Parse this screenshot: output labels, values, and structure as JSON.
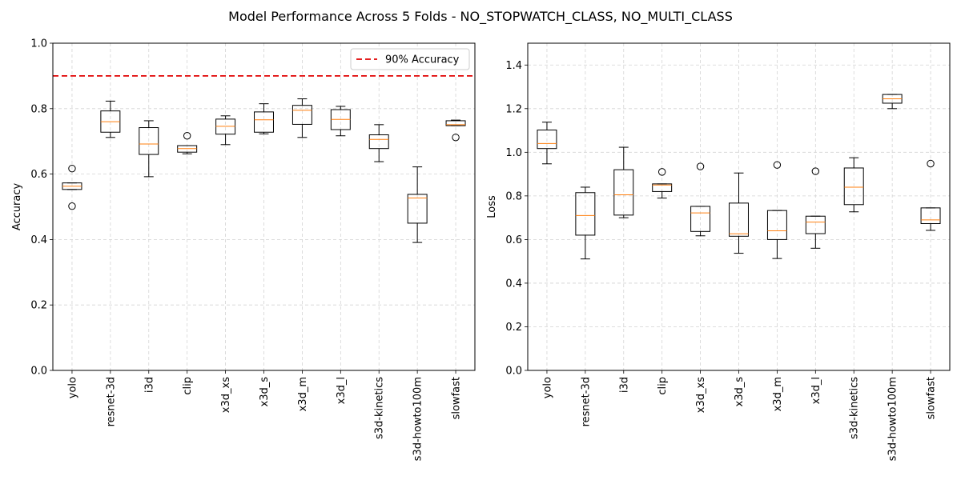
{
  "figure": {
    "title": "Model Performance Across 5 Folds - NO_STOPWATCH_CLASS, NO_MULTI_CLASS"
  },
  "chart_data": [
    {
      "type": "box",
      "ylabel": "Accuracy",
      "xlabel": "",
      "ylim": [
        0.0,
        1.0
      ],
      "yticks": [
        "0.0",
        "0.2",
        "0.4",
        "0.6",
        "0.8",
        "1.0"
      ],
      "grid": true,
      "legend": {
        "placement": "top-right",
        "entries": [
          "90% Accuracy"
        ]
      },
      "reference_line": {
        "value": 0.9,
        "label": "90% Accuracy",
        "color": "#e00000",
        "style": "dashed"
      },
      "categories": [
        "yolo",
        "resnet-3d",
        "i3d",
        "clip",
        "x3d_xs",
        "x3d_s",
        "x3d_m",
        "x3d_l",
        "s3d-kinetics",
        "s3d-howto100m",
        "slowfast"
      ],
      "boxes": [
        {
          "whislo": 0.553,
          "q1": 0.553,
          "med": 0.563,
          "q3": 0.573,
          "whishi": 0.573,
          "fliers": [
            0.617,
            0.502
          ]
        },
        {
          "whislo": 0.712,
          "q1": 0.728,
          "med": 0.76,
          "q3": 0.793,
          "whishi": 0.823,
          "fliers": []
        },
        {
          "whislo": 0.592,
          "q1": 0.66,
          "med": 0.692,
          "q3": 0.742,
          "whishi": 0.763,
          "fliers": []
        },
        {
          "whislo": 0.662,
          "q1": 0.667,
          "med": 0.678,
          "q3": 0.687,
          "whishi": 0.687,
          "fliers": [
            0.717
          ]
        },
        {
          "whislo": 0.69,
          "q1": 0.722,
          "med": 0.746,
          "q3": 0.768,
          "whishi": 0.778,
          "fliers": []
        },
        {
          "whislo": 0.723,
          "q1": 0.728,
          "med": 0.766,
          "q3": 0.79,
          "whishi": 0.815,
          "fliers": []
        },
        {
          "whislo": 0.712,
          "q1": 0.752,
          "med": 0.795,
          "q3": 0.81,
          "whishi": 0.83,
          "fliers": []
        },
        {
          "whislo": 0.717,
          "q1": 0.736,
          "med": 0.767,
          "q3": 0.797,
          "whishi": 0.807,
          "fliers": []
        },
        {
          "whislo": 0.638,
          "q1": 0.678,
          "med": 0.706,
          "q3": 0.72,
          "whishi": 0.751,
          "fliers": []
        },
        {
          "whislo": 0.391,
          "q1": 0.45,
          "med": 0.527,
          "q3": 0.538,
          "whishi": 0.622,
          "fliers": []
        },
        {
          "whislo": 0.748,
          "q1": 0.748,
          "med": 0.751,
          "q3": 0.763,
          "whishi": 0.765,
          "fliers": [
            0.712
          ]
        }
      ]
    },
    {
      "type": "box",
      "ylabel": "Loss",
      "xlabel": "",
      "ylim": [
        0.0,
        1.5
      ],
      "yticks": [
        "0.0",
        "0.2",
        "0.4",
        "0.6",
        "0.8",
        "1.0",
        "1.2",
        "1.4"
      ],
      "grid": true,
      "categories": [
        "yolo",
        "resnet-3d",
        "i3d",
        "clip",
        "x3d_xs",
        "x3d_s",
        "x3d_m",
        "x3d_l",
        "s3d-kinetics",
        "s3d-howto100m",
        "slowfast"
      ],
      "boxes": [
        {
          "whislo": 0.947,
          "q1": 1.017,
          "med": 1.04,
          "q3": 1.102,
          "whishi": 1.138,
          "fliers": []
        },
        {
          "whislo": 0.511,
          "q1": 0.62,
          "med": 0.71,
          "q3": 0.815,
          "whishi": 0.84,
          "fliers": []
        },
        {
          "whislo": 0.7,
          "q1": 0.712,
          "med": 0.805,
          "q3": 0.92,
          "whishi": 1.023,
          "fliers": []
        },
        {
          "whislo": 0.79,
          "q1": 0.82,
          "med": 0.85,
          "q3": 0.855,
          "whishi": 0.855,
          "fliers": [
            0.91
          ]
        },
        {
          "whislo": 0.617,
          "q1": 0.637,
          "med": 0.722,
          "q3": 0.752,
          "whishi": 0.752,
          "fliers": [
            0.935
          ]
        },
        {
          "whislo": 0.537,
          "q1": 0.615,
          "med": 0.626,
          "q3": 0.767,
          "whishi": 0.905,
          "fliers": []
        },
        {
          "whislo": 0.513,
          "q1": 0.6,
          "med": 0.64,
          "q3": 0.733,
          "whishi": 0.733,
          "fliers": [
            0.942
          ]
        },
        {
          "whislo": 0.56,
          "q1": 0.627,
          "med": 0.68,
          "q3": 0.707,
          "whishi": 0.707,
          "fliers": [
            0.913
          ]
        },
        {
          "whislo": 0.727,
          "q1": 0.76,
          "med": 0.84,
          "q3": 0.928,
          "whishi": 0.975,
          "fliers": []
        },
        {
          "whislo": 1.2,
          "q1": 1.225,
          "med": 1.245,
          "q3": 1.265,
          "whishi": 1.265,
          "fliers": []
        },
        {
          "whislo": 0.642,
          "q1": 0.673,
          "med": 0.69,
          "q3": 0.745,
          "whishi": 0.745,
          "fliers": [
            0.948
          ]
        }
      ]
    }
  ],
  "colors": {
    "box": "#000000",
    "median": "#ff7f0e",
    "grid": "#d3d3d3",
    "reference": "#e00000"
  }
}
